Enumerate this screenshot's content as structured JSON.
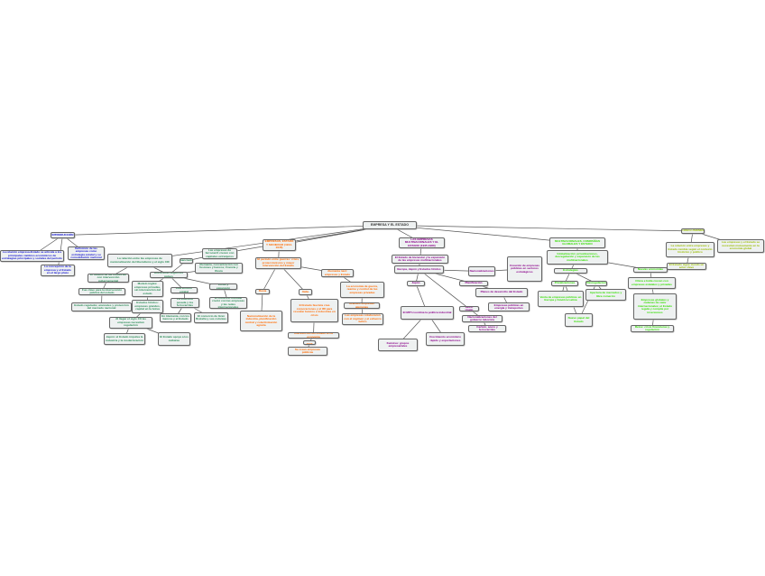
{
  "colors": {
    "root": "#333333",
    "blue": "#1010d0",
    "green": "#2a8a55",
    "orange": "#ff6a00",
    "purple": "#8a008a",
    "lime": "#33dd00",
    "yel": "#99bb00",
    "edge": "#555555"
  },
  "nodes": {
    "root": "EMPRESA Y EL ESTADO",
    "b0": "INTRODUCCIÓN",
    "b1": "La relación empresa-Estado se articula a los principales cambios económicos de estrategias principales y sociales del período",
    "b2": "La concepción de la empresa y el Estado en el largo plazo",
    "b3": "Definición de las empresas como estrategia estatal y su consolidación nacional",
    "g0": "La relación entre las empresas de nacionalización del liberalismo y el siglo XIX",
    "g1": "Las empresas de ferrocarril crecen con capitales extranjeros",
    "g2": "Financiación",
    "g3": "Alemania, concentración con fusiones y bancos; Francia y Rusia",
    "g4": "Diferencias según los países",
    "g5": "El modelo de las industrias con intervención gubernamental",
    "g6": "Fue clave para la intervención pública del estado",
    "g7": "Estado regulador, aranceles y protección del mercado nacional",
    "g8": "Modelo inglés: empresas privadas, sin intervención del estado",
    "g9": "Intervención estatal",
    "g10": "Crisis y expansión",
    "g11": "El comercio mundial creció con las empresas y las redes internacionales",
    "g12": "Estados Unidos: empresas grandes, capital en la bolsa",
    "g13": "La industria pesada y los ferrocarriles",
    "g14": "Al llegar el siglo XX las empresas necesitan regulación",
    "g15": "En Alemania, con los bancos y el Estado",
    "g16": "El comercio de Gran Bretaña y sus colonias",
    "g17": "Japón: el Estado impulsa la industria y la modernización",
    "g18": "El Estado apoya a los zaibatsu",
    "o0": "EMPRESAS, ESTADO Y SOCIEDAD (1914-1945)",
    "o1": "El período entre guerras: crisis, proteccionismo y mayor intervención del Estado",
    "o2": "Rusia",
    "o3": "Italia",
    "o4": "Alemania nazi: empresas y Estado",
    "o5": "Nacionalización de la industria, planificación central y colectivización agraria",
    "o6": "El Estado fascista crea corporaciones y el IRI para rescatar bancos e industrias en crisis",
    "o7": "Intervención del Estado en la economía",
    "o8": "en 1933",
    "o9": "Se crean empresas públicas",
    "o10": "La economía de guerra, rearme y control de las empresas privadas",
    "o11": "Grandes empresas alemanas",
    "o12": "Las empresas colaboraron con el régimen y el esfuerzo bélico",
    "p0": "LAS EMPRESAS MULTINACIONALES Y EL ESTADO (1945-1980)",
    "p1": "El Estado de bienestar y la expansión de las empresas multinacionales",
    "p2": "Europa, Japón y Estados Unidos",
    "p3": "Japón",
    "p4": "Nacionalizaciones",
    "p5": "Creación de empresas públicas en sectores estratégicos",
    "p6": "Planificación",
    "p7": "Planes de desarrollo del Estado",
    "p8": "Empresas públicas en energía y transportes",
    "p9": "Reino Unido",
    "p10": "El MITI coordina la política industrial",
    "p11": "Keiretsu: grupos empresariales",
    "p12": "Crecimiento económico rápido y exportaciones",
    "p13": "Nacionalizaciones del gobierno laborista",
    "p14": "Carbón, acero y ferrocarriles",
    "l0": "MULTINACIONALES, COMPAÑÍAS GLOBALES Y ESTADO",
    "l1": "Globalización: privatizaciones, desregulación y expansión de las multinacionales",
    "l2": "Estrategias",
    "l3": "Privatizaciones",
    "l4": "Desregulación",
    "l5": "Venta de empresas públicas en Europa y América Latina",
    "l6": "Apertura de mercados y libre comercio",
    "l6b": "Nuevo papel del Estado",
    "l7": "Nuevas economías",
    "l8": "China e India crecen con empresas estatales y privadas",
    "l9": "Empresas globales y cadenas de valor internacionales; el Estado regula y compite por inversiones",
    "l10": "Retos: crisis financieras y regulación",
    "y0": "CONCLUSIONES",
    "y1": "La relación entre empresas y Estado cambia según el contexto histórico y político",
    "y2": "El Estado sigue siendo un actor clave",
    "y3": "Las empresas y el Estado se necesitan mutuamente en la economía global"
  },
  "edges": [
    [
      "root",
      "b0"
    ],
    [
      "root",
      "g0"
    ],
    [
      "root",
      "g1"
    ],
    [
      "root",
      "o0"
    ],
    [
      "root",
      "p0"
    ],
    [
      "root",
      "l0"
    ],
    [
      "root",
      "y0"
    ],
    [
      "b0",
      "b1"
    ],
    [
      "b0",
      "b2"
    ],
    [
      "b0",
      "b3"
    ],
    [
      "g4",
      "g0"
    ],
    [
      "g4",
      "g2"
    ],
    [
      "g4",
      "g3"
    ],
    [
      "g4",
      "g10"
    ],
    [
      "g2",
      "g1"
    ],
    [
      "g0",
      "g5"
    ],
    [
      "g5",
      "g6"
    ],
    [
      "g6",
      "g7"
    ],
    [
      "g4",
      "g8"
    ],
    [
      "g4",
      "g9"
    ],
    [
      "g8",
      "g12"
    ],
    [
      "g12",
      "g14"
    ],
    [
      "g14",
      "g17"
    ],
    [
      "g14",
      "g18"
    ],
    [
      "g9",
      "g13"
    ],
    [
      "g13",
      "g15"
    ],
    [
      "g13",
      "g16"
    ],
    [
      "g10",
      "g11"
    ],
    [
      "o0",
      "o1"
    ],
    [
      "o1",
      "o2"
    ],
    [
      "o1",
      "o3"
    ],
    [
      "o1",
      "o4"
    ],
    [
      "o2",
      "o5"
    ],
    [
      "o3",
      "o6"
    ],
    [
      "o6",
      "o7"
    ],
    [
      "o7",
      "o8"
    ],
    [
      "o8",
      "o9"
    ],
    [
      "o4",
      "o10"
    ],
    [
      "o10",
      "o11"
    ],
    [
      "o11",
      "o12"
    ],
    [
      "p0",
      "p1"
    ],
    [
      "p1",
      "p2"
    ],
    [
      "p2",
      "p3"
    ],
    [
      "p2",
      "p4"
    ],
    [
      "p4",
      "p5"
    ],
    [
      "p2",
      "p6"
    ],
    [
      "p6",
      "p7"
    ],
    [
      "p7",
      "p8"
    ],
    [
      "p2",
      "p9"
    ],
    [
      "p9",
      "p13"
    ],
    [
      "p13",
      "p14"
    ],
    [
      "p3",
      "p10"
    ],
    [
      "p10",
      "p11"
    ],
    [
      "p10",
      "p12"
    ],
    [
      "l0",
      "l1"
    ],
    [
      "l2",
      "l1"
    ],
    [
      "l2",
      "l3"
    ],
    [
      "l2",
      "l4"
    ],
    [
      "l3",
      "l5"
    ],
    [
      "l4",
      "l6"
    ],
    [
      "l6b",
      "l3"
    ],
    [
      "l6b",
      "l4"
    ],
    [
      "l1",
      "l7"
    ],
    [
      "l7",
      "l8"
    ],
    [
      "l8",
      "l9"
    ],
    [
      "l9",
      "l10"
    ],
    [
      "y0",
      "y1"
    ],
    [
      "y1",
      "y2"
    ],
    [
      "y0",
      "y3"
    ]
  ]
}
